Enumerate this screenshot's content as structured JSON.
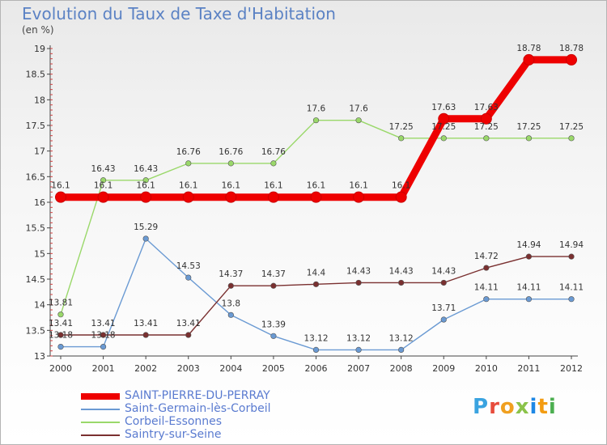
{
  "header": {
    "title": "Evolution du Taux de Taxe d'Habitation",
    "unit": "(en %)"
  },
  "brand": {
    "letters": [
      "P",
      "r",
      "o",
      "x",
      "i",
      "t",
      "i"
    ],
    "colors": [
      "#3aa3e0",
      "#e74c3c",
      "#f0a020",
      "#8bc34a",
      "#1e88e5",
      "#f39c12",
      "#4caf50"
    ]
  },
  "chart_data": {
    "type": "line",
    "x": [
      "2000",
      "2001",
      "2002",
      "2003",
      "2004",
      "2005",
      "2006",
      "2007",
      "2008",
      "2009",
      "2010",
      "2011",
      "2012"
    ],
    "ylim": [
      13,
      19
    ],
    "yticks": [
      "13",
      "13.5",
      "14",
      "14.5",
      "15",
      "15.5",
      "16",
      "16.5",
      "17",
      "17.5",
      "18",
      "18.5",
      "19"
    ],
    "grid": false,
    "legend_position": "bottom-left",
    "series": [
      {
        "name": "SAINT-PIERRE-DU-PERRAY",
        "color": "#ee0000",
        "values": [
          16.1,
          16.1,
          16.1,
          16.1,
          16.1,
          16.1,
          16.1,
          16.1,
          16.1,
          17.63,
          17.63,
          18.78,
          18.78
        ],
        "labels": [
          "16.1",
          "16.1",
          "16.1",
          "16.1",
          "16.1",
          "16.1",
          "16.1",
          "16.1",
          "16.1",
          "17.63",
          "17.63",
          "18.78",
          "18.78"
        ]
      },
      {
        "name": "Saint-Germain-lès-Corbeil",
        "color": "#6a9ad3",
        "values": [
          13.18,
          13.18,
          15.29,
          14.53,
          13.8,
          13.39,
          13.12,
          13.12,
          13.12,
          13.71,
          14.11,
          14.11,
          14.11
        ],
        "labels": [
          "13.18",
          "13.18",
          "15.29",
          "14.53",
          "13.8",
          "13.39",
          "13.12",
          "13.12",
          "13.12",
          "13.71",
          "14.11",
          "14.11",
          "14.11"
        ]
      },
      {
        "name": "Corbeil-Essonnes",
        "color": "#9ad86a",
        "values": [
          13.81,
          16.43,
          16.43,
          16.76,
          16.76,
          16.76,
          17.6,
          17.6,
          17.25,
          17.25,
          17.25,
          17.25,
          17.25
        ],
        "labels": [
          "13.81",
          "16.43",
          "16.43",
          "16.76",
          "16.76",
          "16.76",
          "17.6",
          "17.6",
          "17.25",
          "17.25",
          "17.25",
          "17.25",
          "17.25"
        ]
      },
      {
        "name": "Saintry-sur-Seine",
        "color": "#7a3030",
        "values": [
          13.41,
          13.41,
          13.41,
          13.41,
          14.37,
          14.37,
          14.4,
          14.43,
          14.43,
          14.43,
          14.72,
          14.94,
          14.94
        ],
        "labels": [
          "13.41",
          "13.41",
          "13.41",
          "13.41",
          "14.37",
          "14.37",
          "14.4",
          "14.43",
          "14.43",
          "14.43",
          "14.72",
          "14.94",
          "14.94"
        ]
      }
    ]
  }
}
